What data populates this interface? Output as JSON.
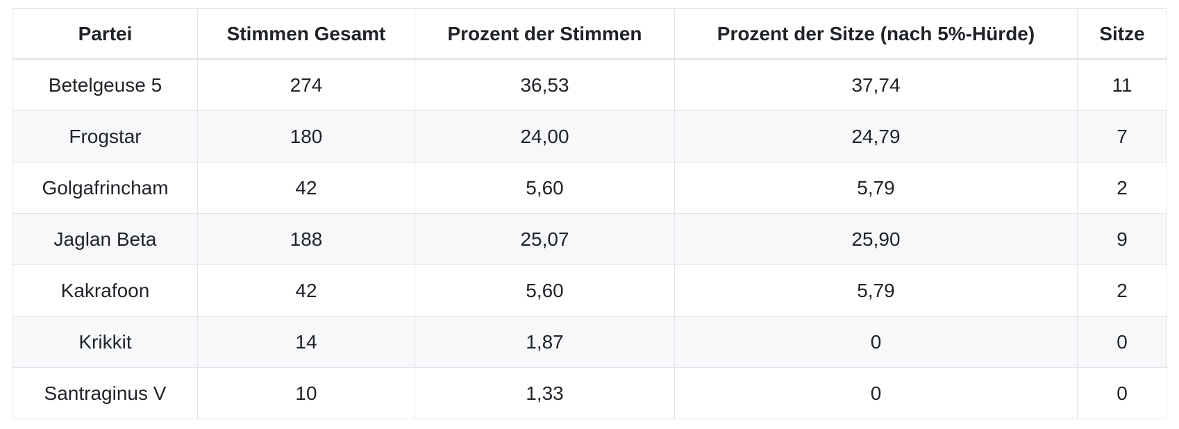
{
  "colors": {
    "text": "#1f2328",
    "cell_border": "#e1e4e8",
    "header_bottom_border": "#dde1e6",
    "stripe_row_background": "#f6f8fa",
    "background": "#ffffff"
  },
  "table": {
    "columns": [
      "Partei",
      "Stimmen Gesamt",
      "Prozent der Stimmen",
      "Prozent der Sitze (nach 5%-Hürde)",
      "Sitze"
    ],
    "rows": [
      [
        "Betelgeuse 5",
        "274",
        "36,53",
        "37,74",
        "11"
      ],
      [
        "Frogstar",
        "180",
        "24,00",
        "24,79",
        "7"
      ],
      [
        "Golgafrincham",
        "42",
        "5,60",
        "5,79",
        "2"
      ],
      [
        "Jaglan Beta",
        "188",
        "25,07",
        "25,90",
        "9"
      ],
      [
        "Kakrafoon",
        "42",
        "5,60",
        "5,79",
        "2"
      ],
      [
        "Krikkit",
        "14",
        "1,87",
        "0",
        "0"
      ],
      [
        "Santraginus V",
        "10",
        "1,33",
        "0",
        "0"
      ]
    ]
  },
  "chart_data": {
    "type": "table",
    "title": "",
    "columns": [
      "Partei",
      "Stimmen Gesamt",
      "Prozent der Stimmen",
      "Prozent der Sitze (nach 5%-Hürde)",
      "Sitze"
    ],
    "rows": [
      {
        "partei": "Betelgeuse 5",
        "stimmen_gesamt": 274,
        "prozent_der_stimmen": "36,53",
        "prozent_der_sitze_nach_5_prozent_huerde": "37,74",
        "sitze": 11
      },
      {
        "partei": "Frogstar",
        "stimmen_gesamt": 180,
        "prozent_der_stimmen": "24,00",
        "prozent_der_sitze_nach_5_prozent_huerde": "24,79",
        "sitze": 7
      },
      {
        "partei": "Golgafrincham",
        "stimmen_gesamt": 42,
        "prozent_der_stimmen": "5,60",
        "prozent_der_sitze_nach_5_prozent_huerde": "5,79",
        "sitze": 2
      },
      {
        "partei": "Jaglan Beta",
        "stimmen_gesamt": 188,
        "prozent_der_stimmen": "25,07",
        "prozent_der_sitze_nach_5_prozent_huerde": "25,90",
        "sitze": 9
      },
      {
        "partei": "Kakrafoon",
        "stimmen_gesamt": 42,
        "prozent_der_stimmen": "5,60",
        "prozent_der_sitze_nach_5_prozent_huerde": "5,79",
        "sitze": 2
      },
      {
        "partei": "Krikkit",
        "stimmen_gesamt": 14,
        "prozent_der_stimmen": "1,87",
        "prozent_der_sitze_nach_5_prozent_huerde": "0",
        "sitze": 0
      },
      {
        "partei": "Santraginus V",
        "stimmen_gesamt": 10,
        "prozent_der_stimmen": "1,33",
        "prozent_der_sitze_nach_5_prozent_huerde": "0",
        "sitze": 0
      }
    ],
    "layout": {
      "striped_rows": "even",
      "text_align": "center",
      "decimal_separator": "comma"
    }
  }
}
